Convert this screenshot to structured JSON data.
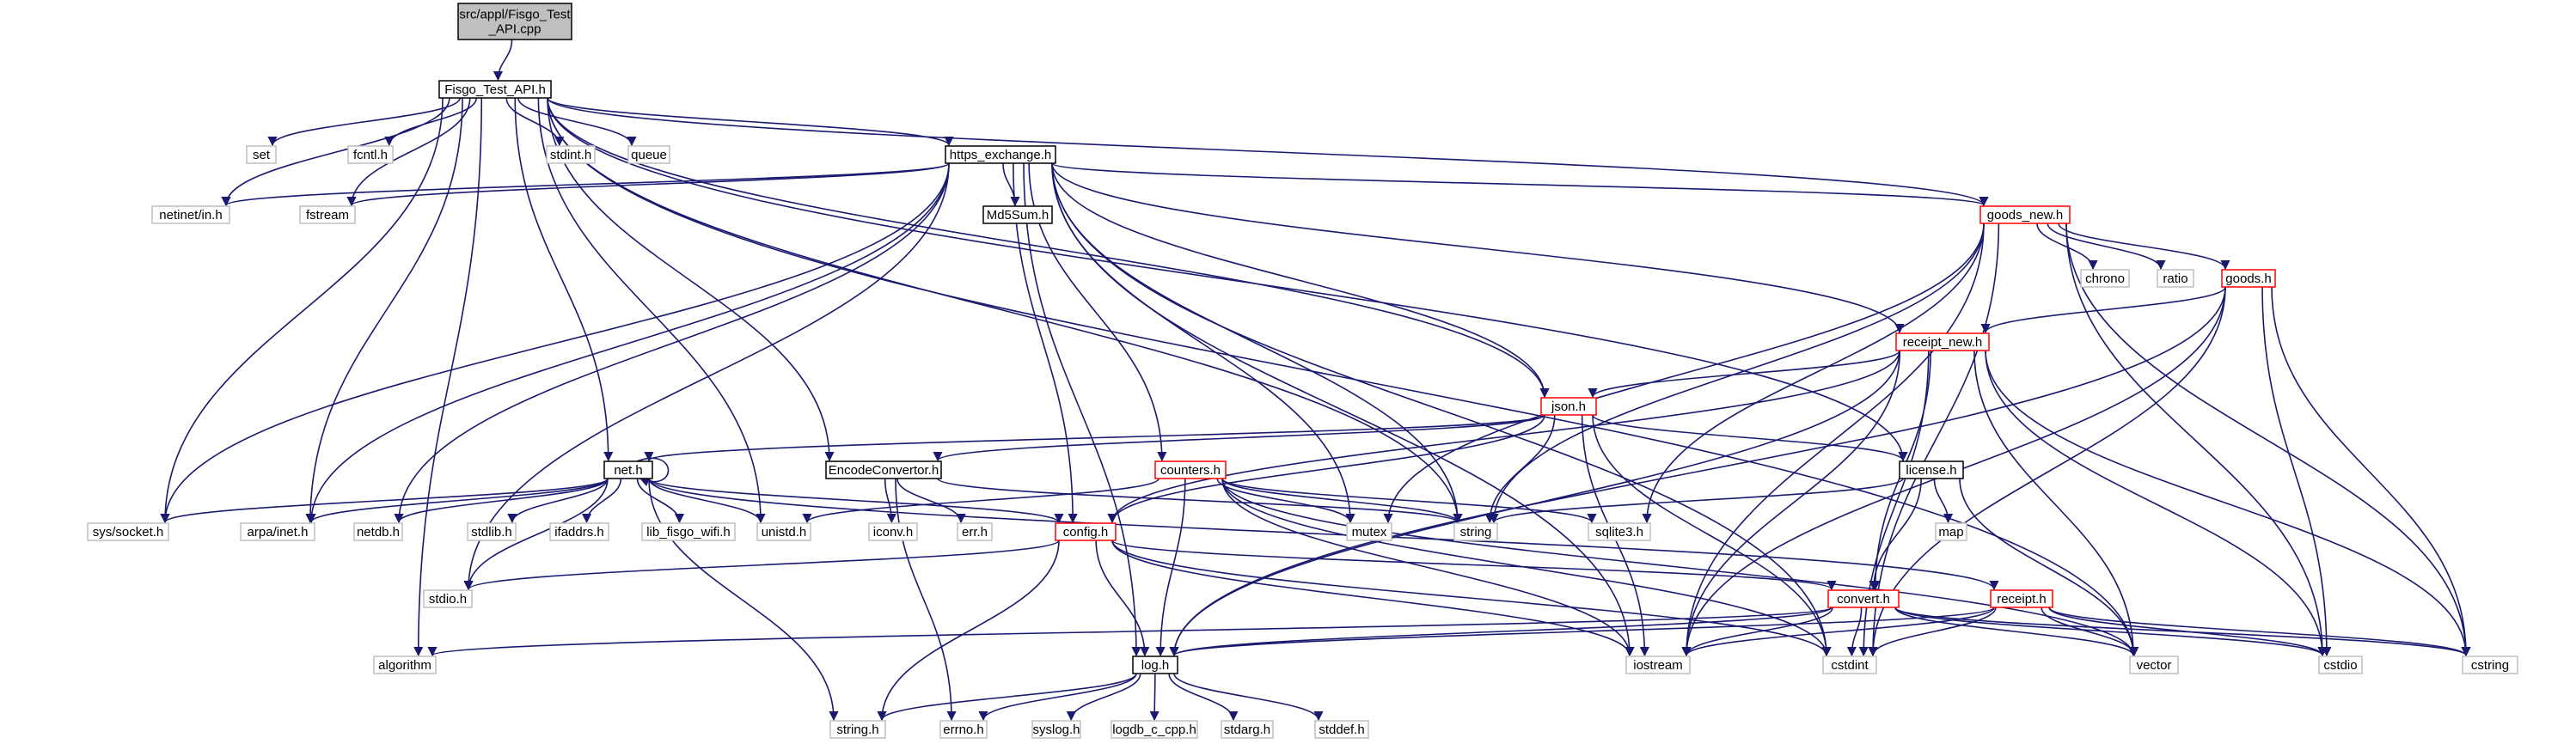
{
  "title": "",
  "colors": {
    "edge": "#191970",
    "root_fill": "#bfbfbf",
    "root_border": "#000000",
    "linked_border": "#000000",
    "expandable_border": "#ff0000",
    "system_border": "#bfbfbf",
    "node_fill": "#ffffff"
  },
  "nodes": [
    {
      "id": "root",
      "lines": [
        "src/appl/Fisgo_Test",
        "_API.cpp"
      ],
      "kind": "root"
    },
    {
      "id": "fisgo_test_api_h",
      "lines": [
        "Fisgo_Test_API.h"
      ],
      "kind": "linked"
    },
    {
      "id": "set",
      "lines": [
        "set"
      ],
      "kind": "system"
    },
    {
      "id": "fcntl_h",
      "lines": [
        "fcntl.h"
      ],
      "kind": "system"
    },
    {
      "id": "stdint_h",
      "lines": [
        "stdint.h"
      ],
      "kind": "system"
    },
    {
      "id": "queue",
      "lines": [
        "queue"
      ],
      "kind": "system"
    },
    {
      "id": "https_exchange_h",
      "lines": [
        "https_exchange.h"
      ],
      "kind": "linked"
    },
    {
      "id": "netinet_in_h",
      "lines": [
        "netinet/in.h"
      ],
      "kind": "system"
    },
    {
      "id": "fstream",
      "lines": [
        "fstream"
      ],
      "kind": "system"
    },
    {
      "id": "md5sum_h",
      "lines": [
        "Md5Sum.h"
      ],
      "kind": "linked"
    },
    {
      "id": "goods_new_h",
      "lines": [
        "goods_new.h"
      ],
      "kind": "expandable"
    },
    {
      "id": "chrono",
      "lines": [
        "chrono"
      ],
      "kind": "system"
    },
    {
      "id": "ratio",
      "lines": [
        "ratio"
      ],
      "kind": "system"
    },
    {
      "id": "goods_h",
      "lines": [
        "goods.h"
      ],
      "kind": "expandable"
    },
    {
      "id": "receipt_new_h",
      "lines": [
        "receipt_new.h"
      ],
      "kind": "expandable"
    },
    {
      "id": "json_h",
      "lines": [
        "json.h"
      ],
      "kind": "expandable"
    },
    {
      "id": "net_h",
      "lines": [
        "net.h"
      ],
      "kind": "linked"
    },
    {
      "id": "encodeconvertor_h",
      "lines": [
        "EncodeConvertor.h"
      ],
      "kind": "linked"
    },
    {
      "id": "counters_h",
      "lines": [
        "counters.h"
      ],
      "kind": "expandable"
    },
    {
      "id": "license_h",
      "lines": [
        "license.h"
      ],
      "kind": "linked"
    },
    {
      "id": "sys_socket_h",
      "lines": [
        "sys/socket.h"
      ],
      "kind": "system"
    },
    {
      "id": "arpa_inet_h",
      "lines": [
        "arpa/inet.h"
      ],
      "kind": "system"
    },
    {
      "id": "netdb_h",
      "lines": [
        "netdb.h"
      ],
      "kind": "system"
    },
    {
      "id": "stdlib_h",
      "lines": [
        "stdlib.h"
      ],
      "kind": "system"
    },
    {
      "id": "ifaddrs_h",
      "lines": [
        "ifaddrs.h"
      ],
      "kind": "system"
    },
    {
      "id": "lib_fisgo_wifi_h",
      "lines": [
        "lib_fisgo_wifi.h"
      ],
      "kind": "system"
    },
    {
      "id": "unistd_h",
      "lines": [
        "unistd.h"
      ],
      "kind": "system"
    },
    {
      "id": "iconv_h",
      "lines": [
        "iconv.h"
      ],
      "kind": "system"
    },
    {
      "id": "err_h",
      "lines": [
        "err.h"
      ],
      "kind": "system"
    },
    {
      "id": "mutex",
      "lines": [
        "mutex"
      ],
      "kind": "system"
    },
    {
      "id": "string",
      "lines": [
        "string"
      ],
      "kind": "system"
    },
    {
      "id": "sqlite3_h",
      "lines": [
        "sqlite3.h"
      ],
      "kind": "system"
    },
    {
      "id": "map",
      "lines": [
        "map"
      ],
      "kind": "system"
    },
    {
      "id": "config_h",
      "lines": [
        "config.h"
      ],
      "kind": "expandable"
    },
    {
      "id": "stdio_h",
      "lines": [
        "stdio.h"
      ],
      "kind": "system"
    },
    {
      "id": "convert_h",
      "lines": [
        "convert.h"
      ],
      "kind": "expandable"
    },
    {
      "id": "receipt_h",
      "lines": [
        "receipt.h"
      ],
      "kind": "expandable"
    },
    {
      "id": "algorithm",
      "lines": [
        "algorithm"
      ],
      "kind": "system"
    },
    {
      "id": "log_h",
      "lines": [
        "log.h"
      ],
      "kind": "linked"
    },
    {
      "id": "iostream",
      "lines": [
        "iostream"
      ],
      "kind": "system"
    },
    {
      "id": "cstdint",
      "lines": [
        "cstdint"
      ],
      "kind": "system"
    },
    {
      "id": "vector",
      "lines": [
        "vector"
      ],
      "kind": "system"
    },
    {
      "id": "cstdio",
      "lines": [
        "cstdio"
      ],
      "kind": "system"
    },
    {
      "id": "cstring",
      "lines": [
        "cstring"
      ],
      "kind": "system"
    },
    {
      "id": "string_h",
      "lines": [
        "string.h"
      ],
      "kind": "system"
    },
    {
      "id": "errno_h",
      "lines": [
        "errno.h"
      ],
      "kind": "system"
    },
    {
      "id": "syslog_h",
      "lines": [
        "syslog.h"
      ],
      "kind": "system"
    },
    {
      "id": "logdb_c_cpp_h",
      "lines": [
        "logdb_c_cpp.h"
      ],
      "kind": "system"
    },
    {
      "id": "stdarg_h",
      "lines": [
        "stdarg.h"
      ],
      "kind": "system"
    },
    {
      "id": "stddef_h",
      "lines": [
        "stddef.h"
      ],
      "kind": "system"
    }
  ],
  "edges": [
    [
      "root",
      "fisgo_test_api_h"
    ],
    [
      "fisgo_test_api_h",
      "set"
    ],
    [
      "fisgo_test_api_h",
      "fcntl_h"
    ],
    [
      "fisgo_test_api_h",
      "stdint_h"
    ],
    [
      "fisgo_test_api_h",
      "queue"
    ],
    [
      "fisgo_test_api_h",
      "https_exchange_h"
    ],
    [
      "fisgo_test_api_h",
      "netinet_in_h"
    ],
    [
      "fisgo_test_api_h",
      "fstream"
    ],
    [
      "fisgo_test_api_h",
      "goods_new_h"
    ],
    [
      "fisgo_test_api_h",
      "json_h"
    ],
    [
      "fisgo_test_api_h",
      "net_h"
    ],
    [
      "fisgo_test_api_h",
      "encodeconvertor_h"
    ],
    [
      "fisgo_test_api_h",
      "license_h"
    ],
    [
      "fisgo_test_api_h",
      "sys_socket_h"
    ],
    [
      "fisgo_test_api_h",
      "arpa_inet_h"
    ],
    [
      "fisgo_test_api_h",
      "unistd_h"
    ],
    [
      "fisgo_test_api_h",
      "string"
    ],
    [
      "fisgo_test_api_h",
      "algorithm"
    ],
    [
      "fisgo_test_api_h",
      "vector"
    ],
    [
      "https_exchange_h",
      "netinet_in_h"
    ],
    [
      "https_exchange_h",
      "fstream"
    ],
    [
      "https_exchange_h",
      "md5sum_h"
    ],
    [
      "https_exchange_h",
      "goods_new_h"
    ],
    [
      "https_exchange_h",
      "receipt_new_h"
    ],
    [
      "https_exchange_h",
      "json_h"
    ],
    [
      "https_exchange_h",
      "counters_h"
    ],
    [
      "https_exchange_h",
      "config_h"
    ],
    [
      "https_exchange_h",
      "sys_socket_h"
    ],
    [
      "https_exchange_h",
      "arpa_inet_h"
    ],
    [
      "https_exchange_h",
      "netdb_h"
    ],
    [
      "https_exchange_h",
      "stdio_h"
    ],
    [
      "https_exchange_h",
      "mutex"
    ],
    [
      "https_exchange_h",
      "string"
    ],
    [
      "https_exchange_h",
      "log_h"
    ],
    [
      "https_exchange_h",
      "iostream"
    ],
    [
      "https_exchange_h",
      "cstdint"
    ],
    [
      "goods_new_h",
      "chrono"
    ],
    [
      "goods_new_h",
      "ratio"
    ],
    [
      "goods_new_h",
      "goods_h"
    ],
    [
      "goods_new_h",
      "mutex"
    ],
    [
      "goods_new_h",
      "string"
    ],
    [
      "goods_new_h",
      "sqlite3_h"
    ],
    [
      "goods_new_h",
      "iostream"
    ],
    [
      "goods_new_h",
      "cstdint"
    ],
    [
      "goods_new_h",
      "cstdio"
    ],
    [
      "goods_new_h",
      "cstring"
    ],
    [
      "goods_h",
      "receipt_new_h"
    ],
    [
      "goods_h",
      "log_h"
    ],
    [
      "goods_h",
      "iostream"
    ],
    [
      "goods_h",
      "cstdint"
    ],
    [
      "goods_h",
      "cstdio"
    ],
    [
      "goods_h",
      "cstring"
    ],
    [
      "receipt_new_h",
      "json_h"
    ],
    [
      "receipt_new_h",
      "config_h"
    ],
    [
      "receipt_new_h",
      "convert_h"
    ],
    [
      "receipt_new_h",
      "log_h"
    ],
    [
      "receipt_new_h",
      "iostream"
    ],
    [
      "receipt_new_h",
      "cstdint"
    ],
    [
      "receipt_new_h",
      "vector"
    ],
    [
      "receipt_new_h",
      "cstdio"
    ],
    [
      "receipt_new_h",
      "cstring"
    ],
    [
      "json_h",
      "net_h"
    ],
    [
      "json_h",
      "encodeconvertor_h"
    ],
    [
      "json_h",
      "license_h"
    ],
    [
      "json_h",
      "config_h"
    ],
    [
      "json_h",
      "string"
    ],
    [
      "json_h",
      "iostream"
    ],
    [
      "json_h",
      "cstdint"
    ],
    [
      "net_h",
      "net_h"
    ],
    [
      "net_h",
      "sys_socket_h"
    ],
    [
      "net_h",
      "arpa_inet_h"
    ],
    [
      "net_h",
      "netdb_h"
    ],
    [
      "net_h",
      "stdlib_h"
    ],
    [
      "net_h",
      "ifaddrs_h"
    ],
    [
      "net_h",
      "lib_fisgo_wifi_h"
    ],
    [
      "net_h",
      "unistd_h"
    ],
    [
      "net_h",
      "config_h"
    ],
    [
      "net_h",
      "stdio_h"
    ],
    [
      "net_h",
      "receipt_h"
    ],
    [
      "net_h",
      "string_h"
    ],
    [
      "encodeconvertor_h",
      "iconv_h"
    ],
    [
      "encodeconvertor_h",
      "err_h"
    ],
    [
      "encodeconvertor_h",
      "string"
    ],
    [
      "encodeconvertor_h",
      "errno_h"
    ],
    [
      "counters_h",
      "unistd_h"
    ],
    [
      "counters_h",
      "mutex"
    ],
    [
      "counters_h",
      "string"
    ],
    [
      "counters_h",
      "sqlite3_h"
    ],
    [
      "counters_h",
      "log_h"
    ],
    [
      "counters_h",
      "iostream"
    ],
    [
      "counters_h",
      "cstdint"
    ],
    [
      "counters_h",
      "vector"
    ],
    [
      "license_h",
      "string"
    ],
    [
      "license_h",
      "map"
    ],
    [
      "license_h",
      "convert_h"
    ],
    [
      "license_h",
      "vector"
    ],
    [
      "config_h",
      "stdio_h"
    ],
    [
      "config_h",
      "convert_h"
    ],
    [
      "config_h",
      "log_h"
    ],
    [
      "config_h",
      "iostream"
    ],
    [
      "config_h",
      "cstdint"
    ],
    [
      "config_h",
      "string_h"
    ],
    [
      "convert_h",
      "algorithm"
    ],
    [
      "convert_h",
      "log_h"
    ],
    [
      "convert_h",
      "iostream"
    ],
    [
      "convert_h",
      "cstdint"
    ],
    [
      "convert_h",
      "vector"
    ],
    [
      "convert_h",
      "cstdio"
    ],
    [
      "convert_h",
      "cstring"
    ],
    [
      "receipt_h",
      "log_h"
    ],
    [
      "receipt_h",
      "iostream"
    ],
    [
      "receipt_h",
      "cstdint"
    ],
    [
      "receipt_h",
      "vector"
    ],
    [
      "receipt_h",
      "cstdio"
    ],
    [
      "receipt_h",
      "cstring"
    ],
    [
      "log_h",
      "string_h"
    ],
    [
      "log_h",
      "errno_h"
    ],
    [
      "log_h",
      "syslog_h"
    ],
    [
      "log_h",
      "logdb_c_cpp_h"
    ],
    [
      "log_h",
      "stdarg_h"
    ],
    [
      "log_h",
      "stddef_h"
    ]
  ]
}
